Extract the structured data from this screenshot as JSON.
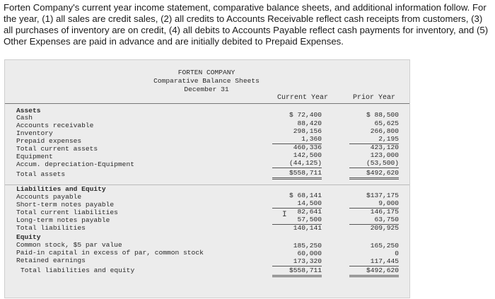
{
  "intro_text": "Forten Company's current year income statement, comparative balance sheets, and additional information follow. For the year, (1) all sales are credit sales, (2) all credits to Accounts Receivable reflect cash receipts from customers, (3) all purchases of inventory are on credit, (4) all debits to Accounts Payable reflect cash payments for inventory, and (5) Other Expenses are paid in advance and are initially debited to Prepaid Expenses.",
  "statement": {
    "company": "FORTEN COMPANY",
    "title": "Comparative Balance Sheets",
    "date": "December 31",
    "col_current": "Current Year",
    "col_prior": "Prior Year"
  },
  "rows": [
    {
      "label": "Assets",
      "current": "",
      "prior": "",
      "bold": true
    },
    {
      "label": "Cash",
      "current": "$ 72,400",
      "prior": "$ 88,500"
    },
    {
      "label": "Accounts receivable",
      "current": "88,420",
      "prior": "65,625"
    },
    {
      "label": "Inventory",
      "current": "298,156",
      "prior": "266,800"
    },
    {
      "label": "Prepaid expenses",
      "current": "1,360",
      "prior": "2,195"
    },
    {
      "label": "Total current assets",
      "current": "460,336",
      "prior": "423,120"
    },
    {
      "label": "Equipment",
      "current": "142,500",
      "prior": "123,000"
    },
    {
      "label": "Accum. depreciation-Equipment",
      "current": "(44,125)",
      "prior": "(53,500)"
    },
    {
      "label": "Total assets",
      "current": "$558,711",
      "prior": "$492,620"
    },
    {
      "label": "Liabilities and Equity",
      "current": "",
      "prior": "",
      "bold": true
    },
    {
      "label": "Accounts payable",
      "current": "$ 68,141",
      "prior": "$137,175"
    },
    {
      "label": "Short-term notes payable",
      "current": "14,500",
      "prior": "9,000"
    },
    {
      "label": "Total current liabilities",
      "current": "82,641",
      "prior": "146,175"
    },
    {
      "label": "Long-term notes payable",
      "current": "57,500",
      "prior": "63,750"
    },
    {
      "label": "Total liabilities",
      "current": "140,141",
      "prior": "209,925"
    },
    {
      "label": "Equity",
      "current": "",
      "prior": "",
      "bold": true
    },
    {
      "label": "Common stock, $5 par value",
      "current": "185,250",
      "prior": "165,250"
    },
    {
      "label": "Paid-in capital in excess of par, common stock",
      "current": "60,000",
      "prior": "0"
    },
    {
      "label": "Retained earnings",
      "current": "173,320",
      "prior": "117,445"
    },
    {
      "label": "Total liabilities and equity",
      "current": "$558,711",
      "prior": "$492,620"
    }
  ]
}
